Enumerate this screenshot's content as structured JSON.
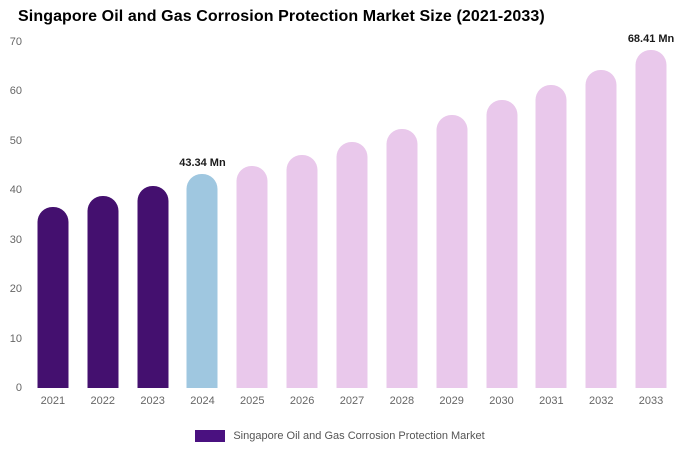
{
  "page": {
    "title": "Singapore Oil and Gas Corrosion Protection Market Size (2021-2033)"
  },
  "legend": {
    "label": "Singapore Oil and Gas Corrosion Protection Market",
    "color": "#4a1180"
  },
  "chart_data": {
    "type": "bar",
    "title": "Singapore Oil and Gas Corrosion Protection Market Size (2021-2033)",
    "categories": [
      "2021",
      "2022",
      "2023",
      "2024",
      "2025",
      "2026",
      "2027",
      "2028",
      "2029",
      "2030",
      "2031",
      "2032",
      "2033"
    ],
    "values": [
      36.6,
      38.8,
      40.8,
      43.34,
      45.0,
      47.2,
      49.8,
      52.4,
      55.3,
      58.2,
      61.3,
      64.3,
      68.41
    ],
    "bar_colors": [
      "#44106f",
      "#44106f",
      "#44106f",
      "#9fc7e0",
      "#e9c8eb",
      "#e9c8eb",
      "#e9c8eb",
      "#e9c8eb",
      "#e9c8eb",
      "#e9c8eb",
      "#e9c8eb",
      "#e9c8eb",
      "#e9c8eb"
    ],
    "color_meaning": {
      "historical": "#44106f",
      "current_year": "#9fc7e0",
      "forecast": "#e9c8eb"
    },
    "data_labels": {
      "2024": "43.34 Mn",
      "2033": "68.41 Mn"
    },
    "xlabel": "",
    "ylabel": "",
    "ylim": [
      0,
      70
    ],
    "yticks": [
      0,
      10,
      20,
      30,
      40,
      50,
      60,
      70
    ],
    "grid": false,
    "legend_position": "bottom",
    "unit": "Mn"
  }
}
